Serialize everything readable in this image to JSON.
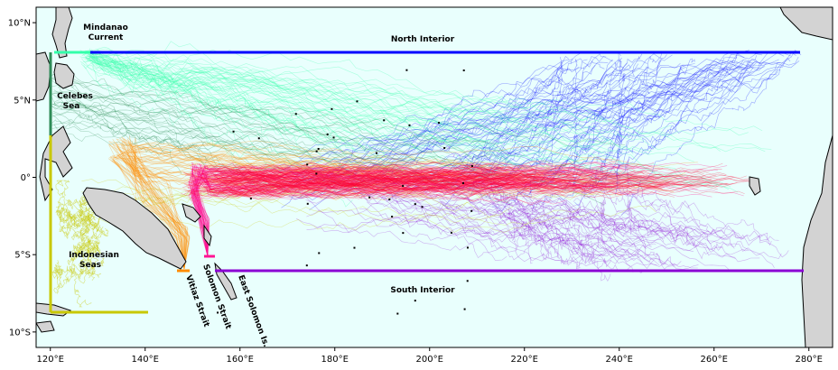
{
  "map": {
    "lon_range": [
      117,
      285
    ],
    "lat_range": [
      -11,
      11
    ],
    "ocean_color": "#e9fffd",
    "land_color": "#d3d3d3",
    "coast_color": "#000000",
    "x_ticks": [
      {
        "lon": 120,
        "label": "120°E"
      },
      {
        "lon": 140,
        "label": "140°E"
      },
      {
        "lon": 160,
        "label": "160°E"
      },
      {
        "lon": 180,
        "label": "180°E"
      },
      {
        "lon": 200,
        "label": "200°E"
      },
      {
        "lon": 220,
        "label": "220°E"
      },
      {
        "lon": 240,
        "label": "240°E"
      },
      {
        "lon": 260,
        "label": "260°E"
      },
      {
        "lon": 280,
        "label": "280°E"
      }
    ],
    "y_ticks": [
      {
        "lat": 10,
        "label": "10°N"
      },
      {
        "lat": 5,
        "label": "5°N"
      },
      {
        "lat": 0,
        "label": "0°"
      },
      {
        "lat": -5,
        "label": "5°S"
      },
      {
        "lat": -10,
        "label": "10°S"
      }
    ],
    "labels": {
      "mindanao": [
        "Mindanao",
        "Current"
      ],
      "celebes": [
        "Celebes",
        "Sea"
      ],
      "indonesian": [
        "Indonesian",
        "Seas"
      ],
      "north_interior": "North Interior",
      "south_interior": "South Interior",
      "vitiaz": "Vitiaz Strait",
      "solomon": "Solomon Strait",
      "east_solomon": "East Solomon Is."
    },
    "source_colors": {
      "north_interior": "#0000ff",
      "south_interior": "#8a00d4",
      "mindanao": "#33ffaa",
      "celebes": "#2e8b57",
      "indonesian": "#c8c800",
      "vitiaz": "#ff8c00",
      "solomon": "#ff1493",
      "equatorial": "#ff0033"
    }
  }
}
